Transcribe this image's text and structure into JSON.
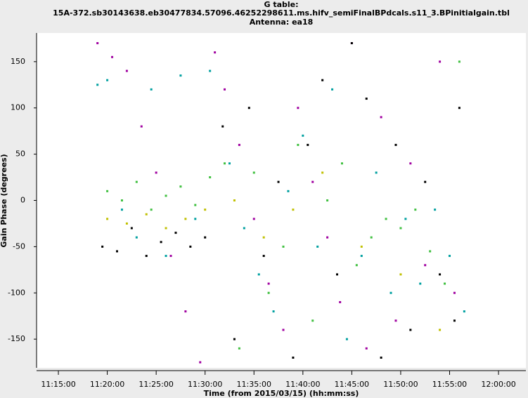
{
  "chart_data": {
    "type": "scatter",
    "title": [
      "G table:",
      "15A-372.sb30143638.eb30477834.57096.46252298611.ms.hifv_semiFinalBPdcals.s11_3.BPinitialgain.tbl",
      "Antenna: ea18"
    ],
    "xlabel": "Time (from 2015/03/15) (hh:mm:ss)",
    "ylabel": "Gain Phase (degrees)",
    "xlim": [
      672.77,
      722.8
    ],
    "ylim": [
      -181,
      181
    ],
    "xticks": [
      {
        "value": 675,
        "label": "11:15:00"
      },
      {
        "value": 680,
        "label": "11:20:00"
      },
      {
        "value": 685,
        "label": "11:25:00"
      },
      {
        "value": 690,
        "label": "11:30:00"
      },
      {
        "value": 695,
        "label": "11:35:00"
      },
      {
        "value": 700,
        "label": "11:40:00"
      },
      {
        "value": 705,
        "label": "11:45:00"
      },
      {
        "value": 710,
        "label": "11:50:00"
      },
      {
        "value": 715,
        "label": "11:55:00"
      },
      {
        "value": 720,
        "label": "12:00:00"
      }
    ],
    "yticks": [
      -150,
      -100,
      -50,
      0,
      50,
      100,
      150
    ],
    "series": [
      {
        "color": "#a000a0",
        "x": [
          679,
          680.5,
          682,
          683.5,
          685,
          686.5,
          688,
          689.5,
          691,
          692,
          693.5,
          695,
          696.5,
          698,
          699.5,
          701,
          702.5,
          703.8,
          705,
          706.5,
          708,
          709.5,
          711,
          712.5,
          714,
          715.5
        ],
        "values": [
          170,
          155,
          140,
          80,
          30,
          -60,
          -120,
          -175,
          160,
          120,
          60,
          -20,
          -90,
          -140,
          100,
          20,
          -40,
          -110,
          170,
          -160,
          90,
          -130,
          40,
          -70,
          150,
          -100
        ]
      },
      {
        "color": "#00a0a0",
        "x": [
          679,
          680,
          681.5,
          683,
          684.5,
          686,
          687.5,
          689,
          690.5,
          692.5,
          694,
          695.5,
          697,
          698.5,
          700,
          701.5,
          703,
          704.5,
          706,
          707.5,
          709,
          710.5,
          712,
          713.5,
          715,
          716.5
        ],
        "values": [
          125,
          130,
          -10,
          -40,
          120,
          -60,
          135,
          -20,
          140,
          40,
          -30,
          -80,
          -120,
          10,
          70,
          -50,
          120,
          -150,
          -60,
          30,
          -100,
          -20,
          -90,
          -10,
          -60,
          -120
        ]
      },
      {
        "color": "#000000",
        "x": [
          679.5,
          681,
          682.5,
          684,
          685.5,
          687,
          688.5,
          690,
          691.8,
          693,
          694.5,
          696,
          697.5,
          699,
          700.5,
          702,
          703.5,
          705,
          706.5,
          708,
          709.5,
          711,
          712.5,
          714,
          715.5,
          716
        ],
        "values": [
          -50,
          -55,
          -30,
          -60,
          -45,
          -35,
          -50,
          -40,
          80,
          -150,
          100,
          -60,
          20,
          -170,
          60,
          130,
          -80,
          170,
          110,
          -170,
          60,
          -140,
          20,
          -80,
          -130,
          100
        ]
      },
      {
        "color": "#40c040",
        "x": [
          680,
          681.5,
          683,
          684.5,
          686,
          687.5,
          689,
          690.5,
          692,
          693.5,
          695,
          696.5,
          698,
          699.5,
          701,
          702.5,
          704,
          705.5,
          707,
          708.5,
          710,
          711.5,
          713,
          714.5,
          716
        ],
        "values": [
          10,
          0,
          20,
          -10,
          5,
          15,
          -5,
          25,
          40,
          -160,
          30,
          -100,
          -50,
          60,
          -130,
          0,
          40,
          -70,
          -40,
          -20,
          -30,
          -10,
          -55,
          -90,
          150
        ]
      },
      {
        "color": "#c0c000",
        "x": [
          680,
          682,
          684,
          686,
          688,
          690,
          693,
          696,
          699,
          702,
          706,
          710,
          714
        ],
        "values": [
          -20,
          -25,
          -15,
          -30,
          -20,
          -10,
          0,
          -40,
          -10,
          30,
          -50,
          -80,
          -140
        ]
      }
    ]
  }
}
